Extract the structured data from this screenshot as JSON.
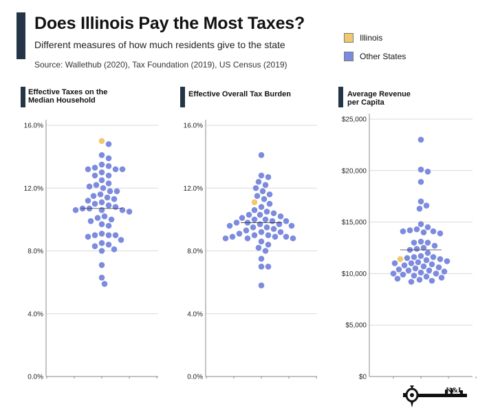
{
  "title": "Does Illinois Pay the Most Taxes?",
  "subtitle": "Different measures of how much residents give to the state",
  "source": "Source: Wallethub (2020), Tax Foundation (2019), US Census (2019)",
  "legend": [
    {
      "label": "Illinois",
      "color": "#f0c96e"
    },
    {
      "label": "Other States",
      "color": "#7d8bde"
    }
  ],
  "colors": {
    "illinois": "#f0c96e",
    "other": "#7d8bde",
    "accent": "#243547"
  },
  "logo": {
    "text": "K&L",
    "icon": "key-icon"
  },
  "chart_data": [
    {
      "type": "scatter",
      "title": "Effective Taxes on the Median Household",
      "ylim": [
        0,
        16
      ],
      "yticks": [
        0,
        4,
        8,
        12,
        16
      ],
      "yticklabels": [
        "0.0%",
        "4.0%",
        "8.0%",
        "12.0%",
        "16.0%"
      ],
      "median": 10.7,
      "illinois": 15.0,
      "values": [
        14.8,
        14.1,
        13.9,
        13.5,
        13.4,
        13.3,
        13.2,
        13.2,
        13.2,
        13.0,
        12.8,
        12.8,
        12.5,
        12.3,
        12.2,
        12.1,
        12.0,
        11.8,
        11.8,
        11.6,
        11.5,
        11.4,
        11.3,
        11.2,
        11.1,
        11.0,
        10.9,
        10.8,
        10.7,
        10.7,
        10.6,
        10.6,
        10.6,
        10.5,
        10.2,
        10.1,
        10.0,
        9.9,
        9.7,
        9.6,
        9.1,
        9.0,
        9.0,
        9.0,
        8.9,
        8.7,
        8.5,
        8.4,
        8.3,
        8.1,
        8.0,
        7.1,
        6.3,
        5.9
      ]
    },
    {
      "type": "scatter",
      "title": "Effective Overall Tax Burden",
      "ylim": [
        0,
        16
      ],
      "yticks": [
        0,
        4,
        8,
        12,
        16
      ],
      "yticklabels": [
        "0.0%",
        "4.0%",
        "8.0%",
        "12.0%",
        "16.0%"
      ],
      "median": 9.8,
      "illinois": 11.1,
      "values": [
        14.1,
        12.8,
        12.7,
        12.4,
        12.2,
        12.0,
        11.8,
        11.6,
        11.5,
        11.3,
        11.0,
        10.8,
        10.6,
        10.5,
        10.4,
        10.3,
        10.3,
        10.2,
        10.1,
        10.0,
        10.0,
        9.9,
        9.9,
        9.8,
        9.8,
        9.7,
        9.7,
        9.6,
        9.6,
        9.5,
        9.5,
        9.4,
        9.3,
        9.2,
        9.2,
        9.1,
        9.0,
        9.0,
        8.9,
        8.9,
        8.9,
        8.8,
        8.8,
        8.8,
        8.6,
        8.4,
        8.2,
        8.0,
        7.5,
        7.0,
        7.0,
        5.8
      ]
    },
    {
      "type": "scatter",
      "title": "Average Revenue per Capita",
      "ylim": [
        0,
        25000
      ],
      "yticks": [
        0,
        5000,
        10000,
        15000,
        20000,
        25000
      ],
      "yticklabels": [
        "$0",
        "$5,000",
        "$10,000",
        "$15,000",
        "$20,000",
        "$25,000"
      ],
      "median": 12300,
      "illinois": 11400,
      "values": [
        23000,
        20100,
        19900,
        18900,
        17000,
        16600,
        16300,
        14800,
        14500,
        14300,
        14200,
        14100,
        14100,
        14000,
        13900,
        13100,
        13000,
        13000,
        12700,
        12500,
        12400,
        12300,
        12000,
        11700,
        11600,
        11600,
        11500,
        11400,
        11300,
        11200,
        11100,
        11000,
        11000,
        10900,
        10800,
        10700,
        10600,
        10500,
        10400,
        10300,
        10300,
        10200,
        10100,
        10000,
        10000,
        9900,
        9800,
        9700,
        9600,
        9500,
        9400,
        9300,
        9200
      ]
    }
  ]
}
